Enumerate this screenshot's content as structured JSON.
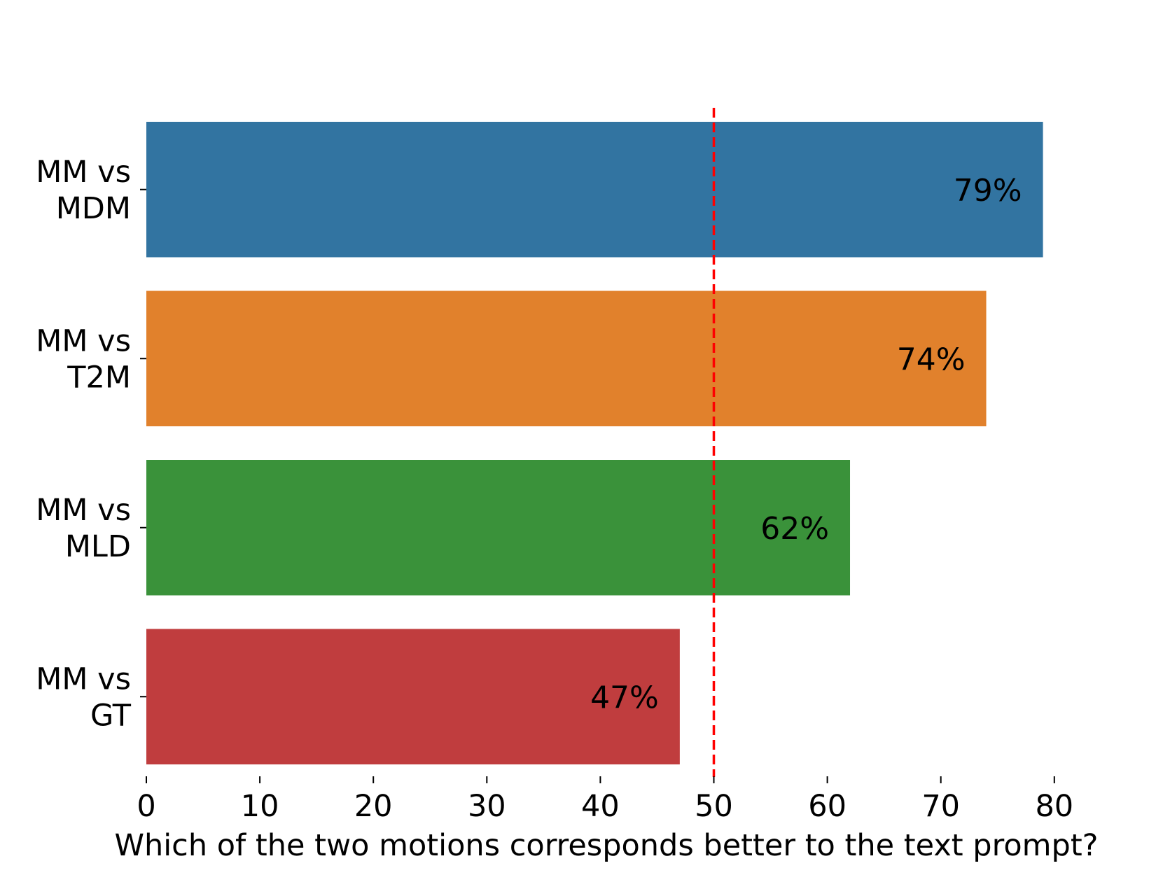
{
  "chart_data": {
    "type": "bar",
    "orientation": "horizontal",
    "title": "",
    "xlabel": "Which of the two motions corresponds better to the text prompt?",
    "ylabel": "",
    "categories": [
      [
        "MM vs",
        "MDM"
      ],
      [
        "MM vs",
        "T2M"
      ],
      [
        "MM vs",
        "MLD"
      ],
      [
        "MM vs",
        "GT"
      ]
    ],
    "values": [
      79,
      74,
      62,
      47
    ],
    "value_labels": [
      "79%",
      "74%",
      "62%",
      "47%"
    ],
    "colors": [
      "#3274a1",
      "#e1812c",
      "#3a923a",
      "#c03d3e"
    ],
    "xlim": [
      0,
      85
    ],
    "xticks": [
      0,
      10,
      20,
      30,
      40,
      50,
      60,
      70,
      80
    ],
    "reference_line": {
      "x": 50,
      "style": "dashed",
      "color": "#ff0000"
    },
    "grid": false,
    "legend": "none"
  }
}
